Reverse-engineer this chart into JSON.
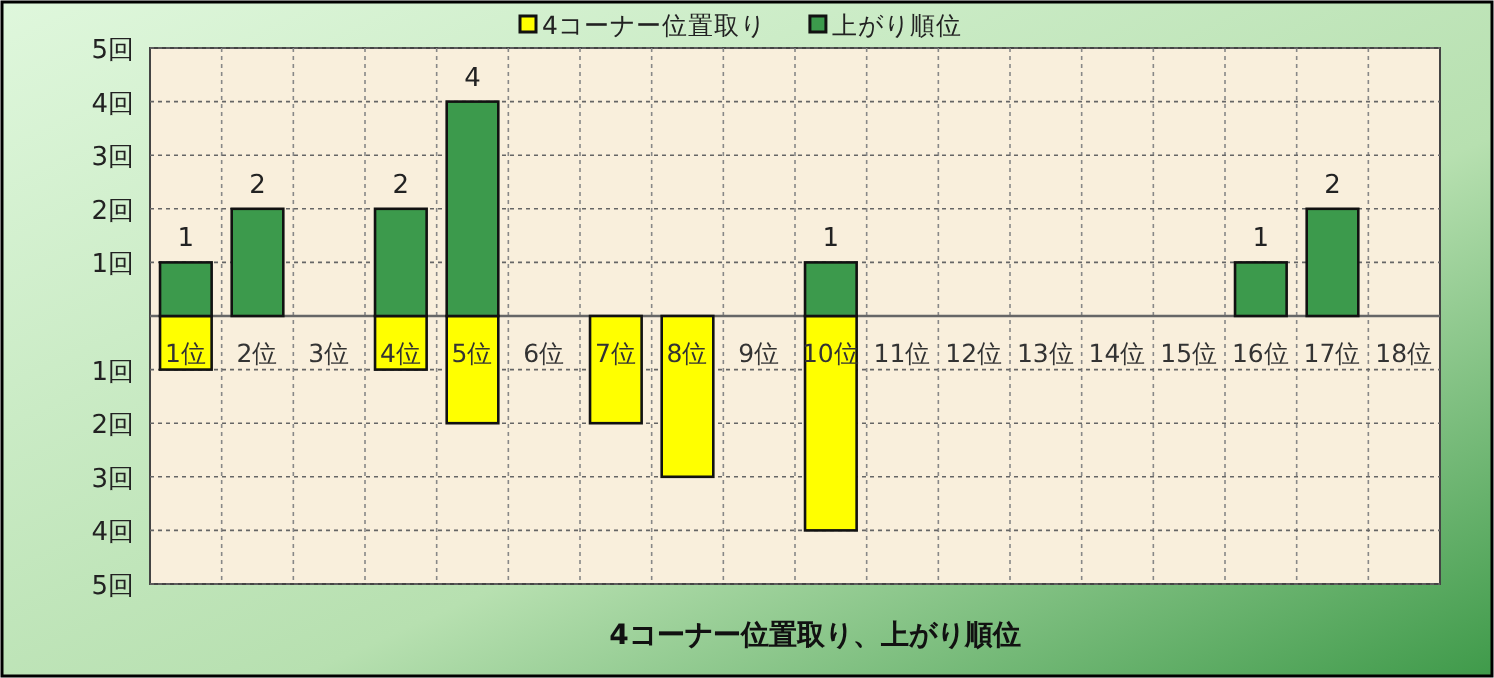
{
  "chart_data": {
    "type": "bar",
    "title": "4コーナー位置取り、上がり順位",
    "categories": [
      "1位",
      "2位",
      "3位",
      "4位",
      "5位",
      "6位",
      "7位",
      "8位",
      "9位",
      "10位",
      "11位",
      "12位",
      "13位",
      "14位",
      "15位",
      "16位",
      "17位",
      "18位"
    ],
    "series": [
      {
        "name": "4コーナー位置取り",
        "color": "#ffff00",
        "values": [
          -1,
          null,
          null,
          -1,
          -2,
          null,
          -2,
          -3,
          null,
          -4,
          null,
          null,
          null,
          null,
          null,
          null,
          null,
          null
        ]
      },
      {
        "name": "上がり順位",
        "color": "#3c9a4c",
        "values": [
          1,
          2,
          null,
          2,
          4,
          null,
          null,
          null,
          null,
          1,
          null,
          null,
          null,
          null,
          null,
          1,
          2,
          null
        ],
        "value_labels": [
          "1",
          "2",
          null,
          "2",
          "4",
          null,
          null,
          null,
          null,
          "1",
          null,
          null,
          null,
          null,
          null,
          "1",
          "2",
          null
        ]
      }
    ],
    "ylim": [
      -5,
      5
    ],
    "yticks": [
      {
        "value": -5,
        "label": "5回"
      },
      {
        "value": -4,
        "label": "4回"
      },
      {
        "value": -3,
        "label": "3回"
      },
      {
        "value": -2,
        "label": "2回"
      },
      {
        "value": -1,
        "label": "1回"
      },
      {
        "value": 0,
        "label": null
      },
      {
        "value": 1,
        "label": "1回"
      },
      {
        "value": 2,
        "label": "2回"
      },
      {
        "value": 3,
        "label": "3回"
      },
      {
        "value": 4,
        "label": "4回"
      },
      {
        "value": 5,
        "label": "5回"
      }
    ],
    "grid": true,
    "legend": "top"
  }
}
